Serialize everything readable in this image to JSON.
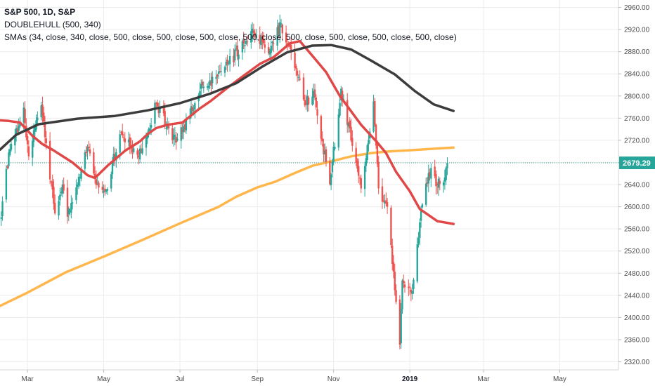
{
  "legend": {
    "title": "S&P 500, 1D, S&P",
    "line2": "DOUBLEHULL (500, 340)",
    "line3": "SMAs (34, close, 340, close, 500, close, 500, close, 500, close, 500, close, 500, close, 500, close, 500, close, 500, close)"
  },
  "colors": {
    "up": "#26a69a",
    "down": "#ef5350",
    "hull_fast": "#e04848",
    "hull_slow": "#3c3c3c",
    "sma": "#ffb74d",
    "grid": "#ececec",
    "price_line": "#26a69a",
    "price_label_bg": "#26a69a"
  },
  "chart_data": {
    "type": "candlestick",
    "symbol": "S&P 500",
    "interval": "1D",
    "exchange": "S&P",
    "ylim": [
      2300,
      2970
    ],
    "y_ticks": [
      2320,
      2360,
      2400,
      2440,
      2480,
      2520,
      2560,
      2600,
      2640,
      2680,
      2720,
      2760,
      2800,
      2840,
      2880,
      2920,
      2960
    ],
    "x_ticks": [
      {
        "label": "Mar",
        "bold": false
      },
      {
        "label": "May",
        "bold": false
      },
      {
        "label": "Jul",
        "bold": false
      },
      {
        "label": "Sep",
        "bold": false
      },
      {
        "label": "Nov",
        "bold": false
      },
      {
        "label": "2019",
        "bold": true
      },
      {
        "label": "Mar",
        "bold": false
      },
      {
        "label": "May",
        "bold": false
      }
    ],
    "x_tick_dates": [
      "2018-03-01",
      "2018-05-01",
      "2018-07-01",
      "2018-09-01",
      "2018-11-01",
      "2019-01-01",
      "2019-03-01",
      "2019-05-01"
    ],
    "xlim": [
      "2018-02-07",
      "2019-06-17"
    ],
    "last_price": "2679.29",
    "last_value": 2679.29,
    "close_path": [
      [
        "2018-02-08",
        2581
      ],
      [
        "2018-02-14",
        2698
      ],
      [
        "2018-02-26",
        2779
      ],
      [
        "2018-03-02",
        2691
      ],
      [
        "2018-03-12",
        2783
      ],
      [
        "2018-03-23",
        2588
      ],
      [
        "2018-03-29",
        2640
      ],
      [
        "2018-04-02",
        2582
      ],
      [
        "2018-04-18",
        2708
      ],
      [
        "2018-04-25",
        2639
      ],
      [
        "2018-05-03",
        2630
      ],
      [
        "2018-05-14",
        2731
      ],
      [
        "2018-05-29",
        2689
      ],
      [
        "2018-06-12",
        2786
      ],
      [
        "2018-06-28",
        2716
      ],
      [
        "2018-07-17",
        2809
      ],
      [
        "2018-08-08",
        2857
      ],
      [
        "2018-08-29",
        2914
      ],
      [
        "2018-09-10",
        2877
      ],
      [
        "2018-09-20",
        2931
      ],
      [
        "2018-10-10",
        2786
      ],
      [
        "2018-10-16",
        2809
      ],
      [
        "2018-10-29",
        2641
      ],
      [
        "2018-11-07",
        2813
      ],
      [
        "2018-11-23",
        2633
      ],
      [
        "2018-12-03",
        2790
      ],
      [
        "2018-12-07",
        2633
      ],
      [
        "2018-12-14",
        2600
      ],
      [
        "2018-12-24",
        2351
      ],
      [
        "2018-12-26",
        2467
      ],
      [
        "2019-01-03",
        2448
      ],
      [
        "2019-01-10",
        2596
      ],
      [
        "2019-01-18",
        2670
      ],
      [
        "2019-01-23",
        2639
      ],
      [
        "2019-01-28",
        2644
      ],
      [
        "2019-01-31",
        2679.29
      ]
    ],
    "series": [
      {
        "kind": "hull",
        "points": [
          [
            "2018-02-07",
            2756
          ],
          [
            "2018-02-14",
            2755
          ],
          [
            "2018-02-23",
            2752
          ],
          [
            "2018-03-05",
            2728
          ],
          [
            "2018-03-13",
            2713
          ],
          [
            "2018-03-21",
            2703
          ],
          [
            "2018-04-06",
            2680
          ],
          [
            "2018-04-18",
            2657
          ],
          [
            "2018-04-24",
            2652
          ],
          [
            "2018-05-04",
            2674
          ],
          [
            "2018-05-18",
            2701
          ],
          [
            "2018-05-30",
            2718
          ],
          [
            "2018-06-05",
            2731
          ],
          [
            "2018-06-12",
            2742
          ],
          [
            "2018-06-21",
            2748
          ],
          [
            "2018-07-03",
            2752
          ],
          [
            "2018-07-16",
            2776
          ],
          [
            "2018-07-25",
            2790
          ],
          [
            "2018-08-07",
            2813
          ],
          [
            "2018-08-20",
            2835
          ],
          [
            "2018-09-03",
            2858
          ],
          [
            "2018-09-14",
            2870
          ],
          [
            "2018-09-27",
            2895
          ],
          [
            "2018-10-05",
            2899
          ],
          [
            "2018-10-16",
            2870
          ],
          [
            "2018-10-26",
            2843
          ],
          [
            "2018-11-06",
            2800
          ],
          [
            "2018-11-23",
            2748
          ],
          [
            "2018-12-06",
            2716
          ],
          [
            "2018-12-13",
            2697
          ],
          [
            "2018-12-21",
            2663
          ],
          [
            "2019-01-01",
            2628
          ],
          [
            "2019-01-09",
            2596
          ],
          [
            "2019-01-23",
            2574
          ],
          [
            "2019-02-05",
            2569
          ]
        ]
      },
      {
        "kind": "hull",
        "points": [
          [
            "2018-02-07",
            2703
          ],
          [
            "2018-02-20",
            2730
          ],
          [
            "2018-03-10",
            2749
          ],
          [
            "2018-04-10",
            2759
          ],
          [
            "2018-05-10",
            2764
          ],
          [
            "2018-06-05",
            2774
          ],
          [
            "2018-07-01",
            2787
          ],
          [
            "2018-07-25",
            2804
          ],
          [
            "2018-08-15",
            2823
          ],
          [
            "2018-09-05",
            2853
          ],
          [
            "2018-09-25",
            2879
          ],
          [
            "2018-10-15",
            2891
          ],
          [
            "2018-10-30",
            2892
          ],
          [
            "2018-11-15",
            2884
          ],
          [
            "2018-12-01",
            2864
          ],
          [
            "2018-12-20",
            2839
          ],
          [
            "2019-01-05",
            2809
          ],
          [
            "2019-01-20",
            2785
          ],
          [
            "2019-02-05",
            2773
          ]
        ]
      },
      {
        "kind": "sma",
        "points": [
          [
            "2018-02-07",
            2421
          ],
          [
            "2018-03-01",
            2445
          ],
          [
            "2018-04-01",
            2482
          ],
          [
            "2018-05-01",
            2510
          ],
          [
            "2018-06-01",
            2540
          ],
          [
            "2018-07-01",
            2570
          ],
          [
            "2018-08-01",
            2600
          ],
          [
            "2018-08-15",
            2618
          ],
          [
            "2018-09-01",
            2635
          ],
          [
            "2018-09-15",
            2645
          ],
          [
            "2018-10-01",
            2661
          ],
          [
            "2018-10-15",
            2674
          ],
          [
            "2018-11-01",
            2683
          ],
          [
            "2018-11-15",
            2691
          ],
          [
            "2018-12-01",
            2697
          ],
          [
            "2018-12-15",
            2700
          ],
          [
            "2019-01-01",
            2702
          ],
          [
            "2019-01-15",
            2704
          ],
          [
            "2019-02-05",
            2707
          ]
        ]
      }
    ]
  }
}
